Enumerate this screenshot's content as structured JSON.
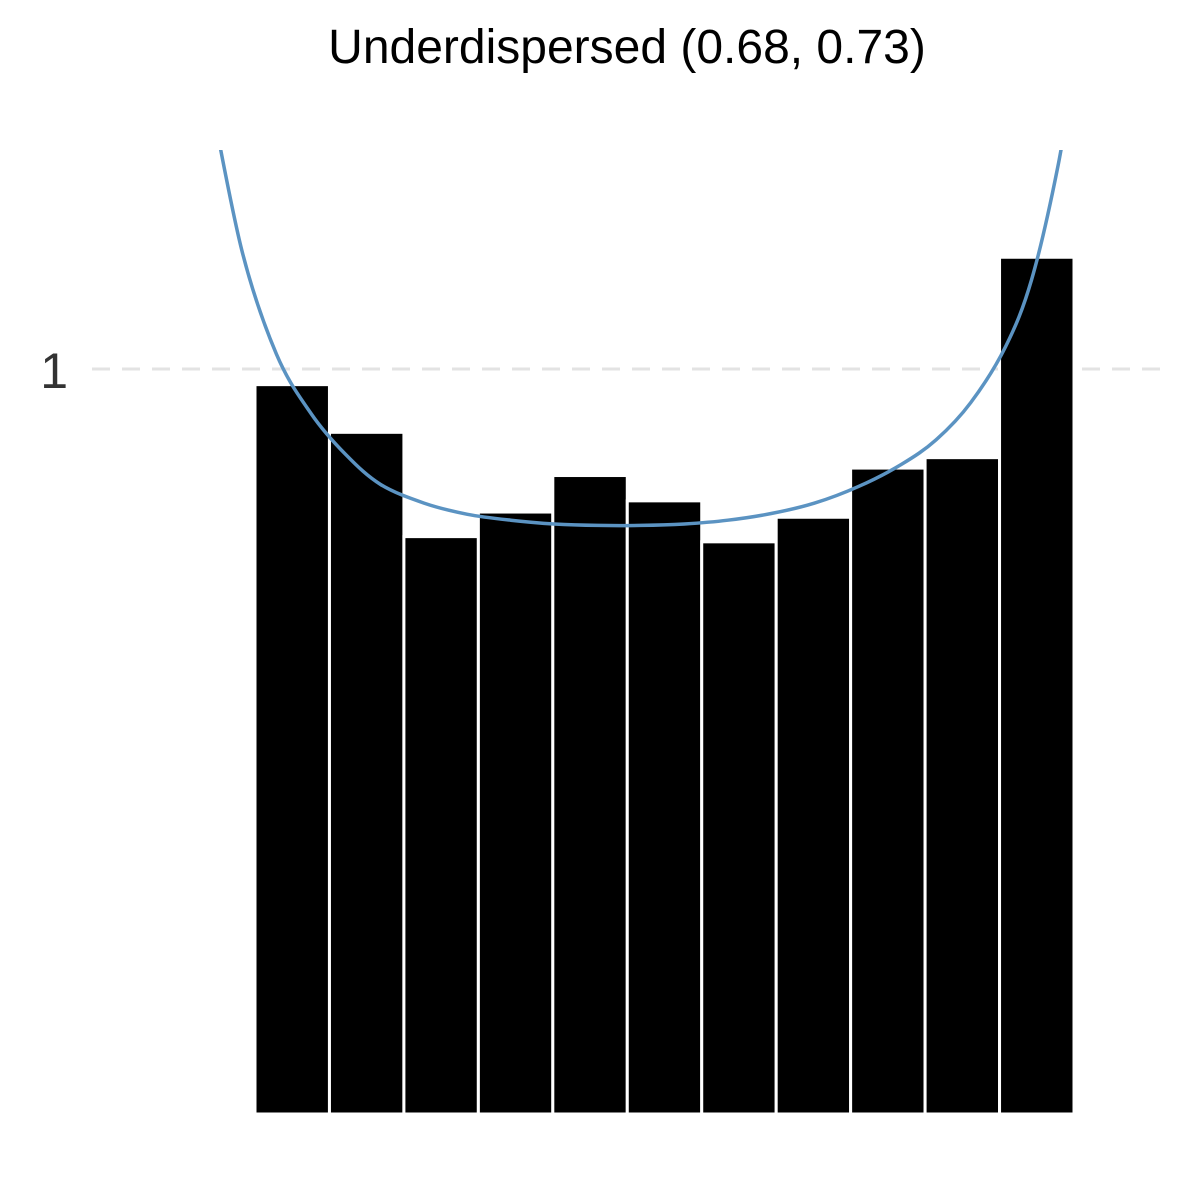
{
  "chart_data": {
    "type": "bar",
    "title": "Underdispersed (0.68, 0.73)",
    "xlabel": "",
    "ylabel": "",
    "y_ticks": [
      {
        "value": 1,
        "label": "1"
      }
    ],
    "ylim": [
      0,
      1.2
    ],
    "grid": "dashed horizontal reference line at y = 1",
    "values": [
      0.979,
      0.915,
      0.775,
      0.808,
      0.857,
      0.823,
      0.768,
      0.801,
      0.867,
      0.881,
      1.15
    ],
    "overlay_curve": {
      "type": "line",
      "color": "#5b93c2",
      "points": [
        [
          0.0,
          1.39
        ],
        [
          0.04,
          1.16
        ],
        [
          0.08,
          1.02
        ],
        [
          0.12,
          0.94
        ],
        [
          0.16,
          0.885
        ],
        [
          0.2,
          0.845
        ],
        [
          0.25,
          0.82
        ],
        [
          0.3,
          0.805
        ],
        [
          0.35,
          0.797
        ],
        [
          0.4,
          0.792
        ],
        [
          0.45,
          0.79
        ],
        [
          0.5,
          0.79
        ],
        [
          0.55,
          0.792
        ],
        [
          0.6,
          0.797
        ],
        [
          0.65,
          0.806
        ],
        [
          0.7,
          0.82
        ],
        [
          0.75,
          0.842
        ],
        [
          0.8,
          0.872
        ],
        [
          0.84,
          0.905
        ],
        [
          0.88,
          0.955
        ],
        [
          0.92,
          1.03
        ],
        [
          0.95,
          1.12
        ],
        [
          0.98,
          1.27
        ],
        [
          1.0,
          1.41
        ]
      ]
    },
    "colors": {
      "bars": "#000000",
      "bar_border": "#ffffff",
      "curve": "#5b93c2",
      "grid": "#e3e3e3",
      "tick_text": "#333333",
      "title": "#000000"
    }
  }
}
